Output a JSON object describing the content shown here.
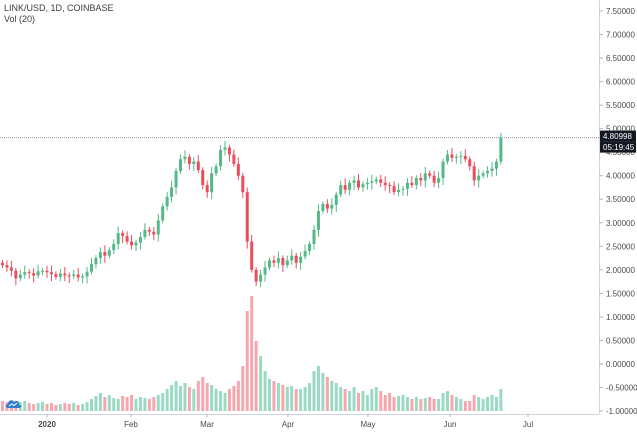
{
  "legend": {
    "symbol_line": "LINK/USD, 1D, COINBASE",
    "volume_line": "Vol (20)"
  },
  "colors": {
    "up": "#53b987",
    "down": "#eb4d5c",
    "vol_up": "#9ad9c4",
    "vol_down": "#f4a7ae",
    "axis_text": "#4a4a4a",
    "label_bg": "#131722"
  },
  "logo_icon": "tradingview-cloud-icon",
  "chart_data": {
    "type": "candlestick",
    "symbol": "LINK/USD",
    "interval": "1D",
    "exchange": "COINBASE",
    "price_axis_ticks": [
      "7.50000",
      "7.00000",
      "6.50000",
      "6.00000",
      "5.50000",
      "5.00000",
      "4.50000",
      "4.00000",
      "3.50000",
      "3.00000",
      "2.50000",
      "2.00000",
      "1.50000",
      "1.00000",
      "0.50000",
      "0.00000",
      "-0.50000",
      "-1.00000"
    ],
    "price_axis_range": [
      -1.0,
      7.5
    ],
    "time_axis_labels": [
      "2020",
      "Feb",
      "Mar",
      "Apr",
      "May",
      "Jun",
      "Jul"
    ],
    "last_price_label": "4.80998",
    "countdown_label": "05:19:45",
    "last_price": 4.81,
    "high_reference_line": 4.81,
    "close_series": [
      2.1,
      2.05,
      1.98,
      1.82,
      1.9,
      1.95,
      1.93,
      1.88,
      1.97,
      1.98,
      1.95,
      1.91,
      1.85,
      1.92,
      1.88,
      1.87,
      1.9,
      1.84,
      1.86,
      1.96,
      2.12,
      2.25,
      2.38,
      2.3,
      2.42,
      2.55,
      2.78,
      2.72,
      2.6,
      2.52,
      2.58,
      2.7,
      2.85,
      2.81,
      2.75,
      3.05,
      3.35,
      3.55,
      3.75,
      4.1,
      4.35,
      4.4,
      4.25,
      4.3,
      4.12,
      3.8,
      3.65,
      4.05,
      4.2,
      4.55,
      4.6,
      4.45,
      4.25,
      4.0,
      3.65,
      2.6,
      2.0,
      1.75,
      1.9,
      2.05,
      2.2,
      2.15,
      2.25,
      2.1,
      2.2,
      2.3,
      2.15,
      2.28,
      2.4,
      2.55,
      2.85,
      3.25,
      3.4,
      3.3,
      3.38,
      3.6,
      3.8,
      3.7,
      3.85,
      3.9,
      3.75,
      3.82,
      3.85,
      3.88,
      3.92,
      3.85,
      3.8,
      3.78,
      3.65,
      3.7,
      3.72,
      3.85,
      3.8,
      3.95,
      3.9,
      4.05,
      4.0,
      3.85,
      3.95,
      4.3,
      4.45,
      4.38,
      4.4,
      4.42,
      4.35,
      4.2,
      3.9,
      4.0,
      4.05,
      4.1,
      4.15,
      4.3,
      4.81
    ],
    "volume_series": [
      0.1,
      0.09,
      0.08,
      0.08,
      0.09,
      0.1,
      0.08,
      0.07,
      0.08,
      0.09,
      0.07,
      0.08,
      0.06,
      0.07,
      0.08,
      0.07,
      0.08,
      0.06,
      0.07,
      0.09,
      0.12,
      0.15,
      0.18,
      0.14,
      0.16,
      0.13,
      0.12,
      0.15,
      0.14,
      0.16,
      0.12,
      0.14,
      0.13,
      0.12,
      0.14,
      0.16,
      0.18,
      0.22,
      0.26,
      0.3,
      0.25,
      0.28,
      0.24,
      0.22,
      0.3,
      0.34,
      0.28,
      0.26,
      0.22,
      0.2,
      0.18,
      0.22,
      0.25,
      0.3,
      0.45,
      1.0,
      1.15,
      0.7,
      0.55,
      0.4,
      0.32,
      0.3,
      0.28,
      0.26,
      0.24,
      0.25,
      0.22,
      0.22,
      0.24,
      0.28,
      0.4,
      0.45,
      0.38,
      0.34,
      0.3,
      0.28,
      0.24,
      0.22,
      0.2,
      0.24,
      0.18,
      0.2,
      0.16,
      0.22,
      0.24,
      0.2,
      0.16,
      0.18,
      0.14,
      0.15,
      0.16,
      0.14,
      0.12,
      0.14,
      0.12,
      0.13,
      0.14,
      0.12,
      0.12,
      0.18,
      0.2,
      0.16,
      0.14,
      0.12,
      0.1,
      0.1,
      0.16,
      0.14,
      0.12,
      0.14,
      0.16,
      0.14,
      0.22
    ]
  }
}
